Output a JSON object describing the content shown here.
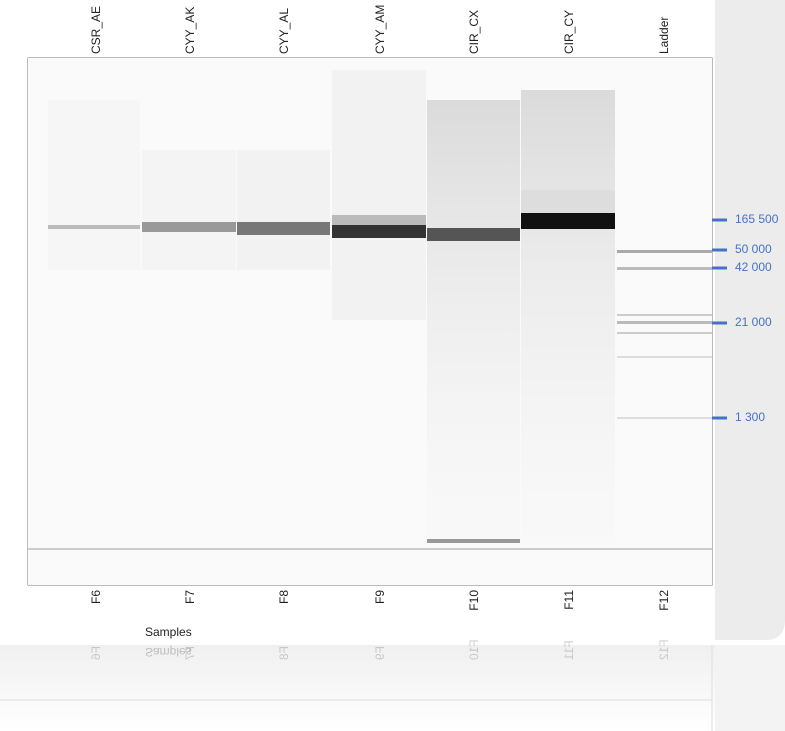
{
  "lanes": [
    {
      "name": "CSR_AE",
      "well": "F6"
    },
    {
      "name": "CYY_AK",
      "well": "F7"
    },
    {
      "name": "CYY_AL",
      "well": "F8"
    },
    {
      "name": "CYY_AM",
      "well": "F9"
    },
    {
      "name": "CIR_CX",
      "well": "F10"
    },
    {
      "name": "CIR_CY",
      "well": "F11"
    },
    {
      "name": "Ladder",
      "well": "F12"
    }
  ],
  "x_axis_label": "Samples",
  "size_markers": [
    "165 500",
    "50 000",
    "42 000",
    "21 000",
    "1 300"
  ]
}
